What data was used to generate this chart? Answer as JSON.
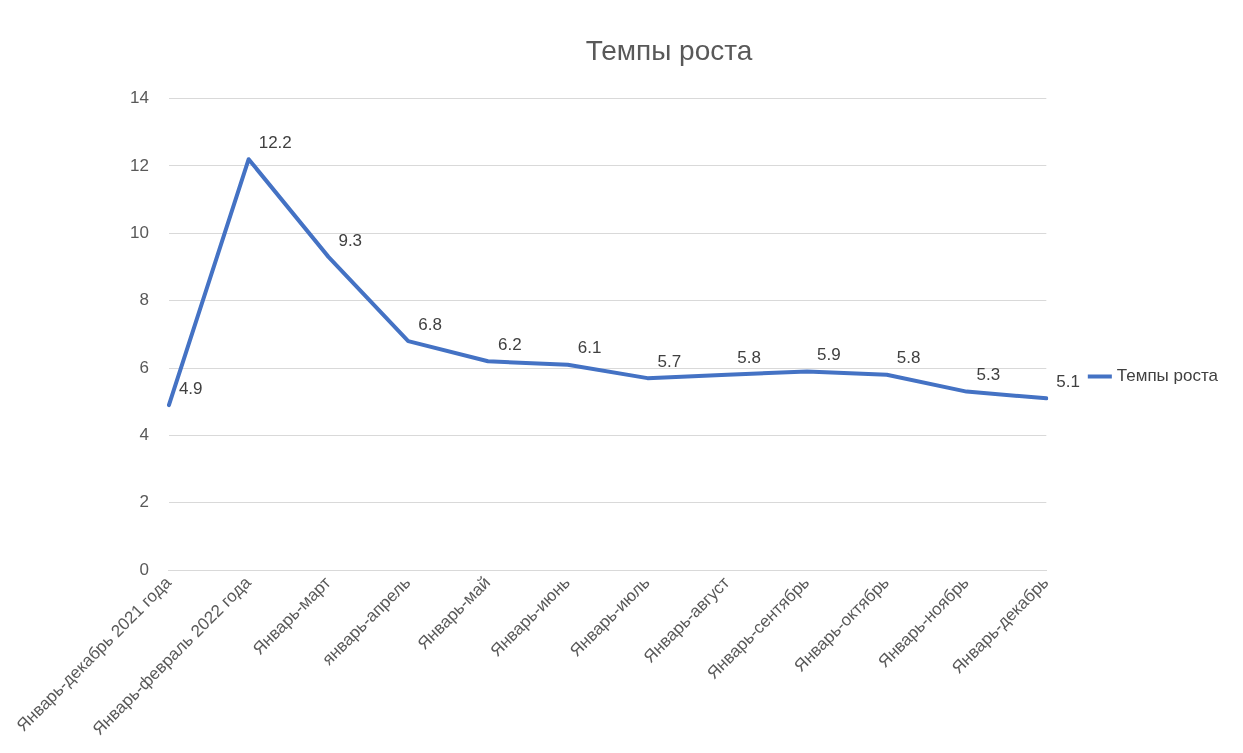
{
  "chart_data": {
    "type": "line",
    "title": "Темпы роста",
    "categories": [
      "Январь-декабрь 2021 года",
      "Январь-февраль 2022 года",
      "Январь-март",
      "январь-апрель",
      "Январь-май",
      "Январь-июнь",
      "Январь-июль",
      "Январь-август",
      "Январь-сентябрь",
      "Январь-октябрь",
      "Январь-ноябрь",
      "Январь-декабрь"
    ],
    "series": [
      {
        "name": "Темпы роста",
        "color": "#4472c4",
        "values": [
          4.9,
          12.2,
          9.3,
          6.8,
          6.2,
          6.1,
          5.7,
          5.8,
          5.9,
          5.8,
          5.3,
          5.1
        ]
      }
    ],
    "ylim": [
      0,
      14
    ],
    "yticks": [
      0,
      2,
      4,
      6,
      8,
      10,
      12,
      14
    ],
    "grid": "y",
    "legend": "right",
    "marker": "none",
    "line_style": "solid",
    "data_labels": true
  }
}
